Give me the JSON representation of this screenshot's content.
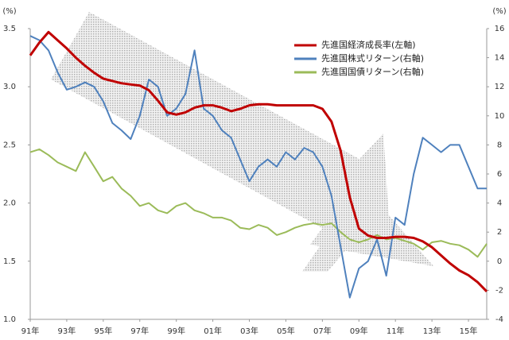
{
  "chart_data": {
    "type": "line",
    "ylabel": "(%)",
    "y2label": "(%)",
    "x": [
      1991,
      1991.5,
      1992,
      1992.5,
      1993,
      1993.5,
      1994,
      1994.5,
      1995,
      1995.5,
      1996,
      1996.5,
      1997,
      1997.5,
      1998,
      1998.5,
      1999,
      1999.5,
      2000,
      2000.5,
      2001,
      2001.5,
      2002,
      2002.5,
      2003,
      2003.5,
      2004,
      2004.5,
      2005,
      2005.5,
      2006,
      2006.5,
      2007,
      2007.5,
      2008,
      2008.5,
      2009,
      2009.5,
      2010,
      2010.5,
      2011,
      2011.5,
      2012,
      2012.5,
      2013,
      2013.5,
      2014,
      2014.5,
      2015,
      2015.5,
      2016
    ],
    "xlim": [
      1991,
      2016
    ],
    "xticks": [
      {
        "value": 1991,
        "label": "91年"
      },
      {
        "value": 1993,
        "label": "93年"
      },
      {
        "value": 1995,
        "label": "95年"
      },
      {
        "value": 1997,
        "label": "97年"
      },
      {
        "value": 1999,
        "label": "99年"
      },
      {
        "value": 2001,
        "label": "01年"
      },
      {
        "value": 2003,
        "label": "03年"
      },
      {
        "value": 2005,
        "label": "05年"
      },
      {
        "value": 2007,
        "label": "07年"
      },
      {
        "value": 2009,
        "label": "09年"
      },
      {
        "value": 2011,
        "label": "11年"
      },
      {
        "value": 2013,
        "label": "13年"
      },
      {
        "value": 2015,
        "label": "15年"
      }
    ],
    "ylim": [
      1.0,
      3.5
    ],
    "yticks": [
      {
        "value": 1.0,
        "label": "1.0"
      },
      {
        "value": 1.5,
        "label": "1.5"
      },
      {
        "value": 2.0,
        "label": "2.0"
      },
      {
        "value": 2.5,
        "label": "2.5"
      },
      {
        "value": 3.0,
        "label": "3.0"
      },
      {
        "value": 3.5,
        "label": "3.5"
      }
    ],
    "y2lim": [
      -4,
      16
    ],
    "y2ticks": [
      -4,
      -2,
      0,
      2,
      4,
      6,
      8,
      10,
      12,
      14,
      16
    ],
    "y2_negative_tick_color": "#c00000",
    "legend": "upper center",
    "series": [
      {
        "name": "先進国経済成長率(左軸)",
        "color": "#c00000",
        "width": 3,
        "values": [
          3.27,
          3.38,
          3.47,
          3.4,
          3.33,
          3.25,
          3.18,
          3.12,
          3.07,
          3.05,
          3.03,
          3.02,
          3.01,
          2.97,
          2.88,
          2.78,
          2.76,
          2.78,
          2.82,
          2.84,
          2.84,
          2.82,
          2.79,
          2.81,
          2.84,
          2.85,
          2.85,
          2.84,
          2.84,
          2.84,
          2.84,
          2.84,
          2.81,
          2.7,
          2.45,
          2.05,
          1.78,
          1.72,
          1.7,
          1.7,
          1.71,
          1.71,
          1.7,
          1.67,
          1.62,
          1.55,
          1.48,
          1.42,
          1.38,
          1.32,
          1.24
        ]
      },
      {
        "name": "先進国株式リターン(右軸)",
        "color": "#4f81bd",
        "width": 2,
        "axis": "y2",
        "values": [
          15.5,
          15.2,
          14.5,
          13,
          11.8,
          12,
          12.3,
          12,
          11,
          9.5,
          9,
          8.4,
          10,
          12.5,
          12,
          10,
          10.5,
          11.5,
          14.5,
          10.5,
          10,
          9,
          8.5,
          7,
          5.5,
          6.5,
          7,
          6.5,
          7.5,
          7,
          7.8,
          7.5,
          6.5,
          4.5,
          1,
          -2.5,
          -0.5,
          0,
          1.5,
          -1,
          3,
          2.5,
          6,
          8.5,
          8,
          7.5,
          8,
          8,
          6.5,
          5,
          5
        ]
      },
      {
        "name": "先進国国債リターン(右軸)",
        "color": "#9bbb59",
        "width": 2,
        "axis": "y2",
        "values": [
          7.5,
          7.7,
          7.3,
          6.8,
          6.5,
          6.2,
          7.5,
          6.5,
          5.5,
          5.8,
          5,
          4.5,
          3.8,
          4,
          3.5,
          3.3,
          3.8,
          4,
          3.5,
          3.3,
          3,
          3,
          2.8,
          2.3,
          2.2,
          2.5,
          2.3,
          1.8,
          2,
          2.3,
          2.5,
          2.6,
          2.5,
          2.6,
          2,
          1.5,
          1.3,
          1.5,
          1.8,
          1.5,
          1.6,
          1.4,
          1.2,
          0.8,
          1.3,
          1.4,
          1.2,
          1.1,
          0.8,
          0.3,
          1.2
        ]
      }
    ]
  }
}
